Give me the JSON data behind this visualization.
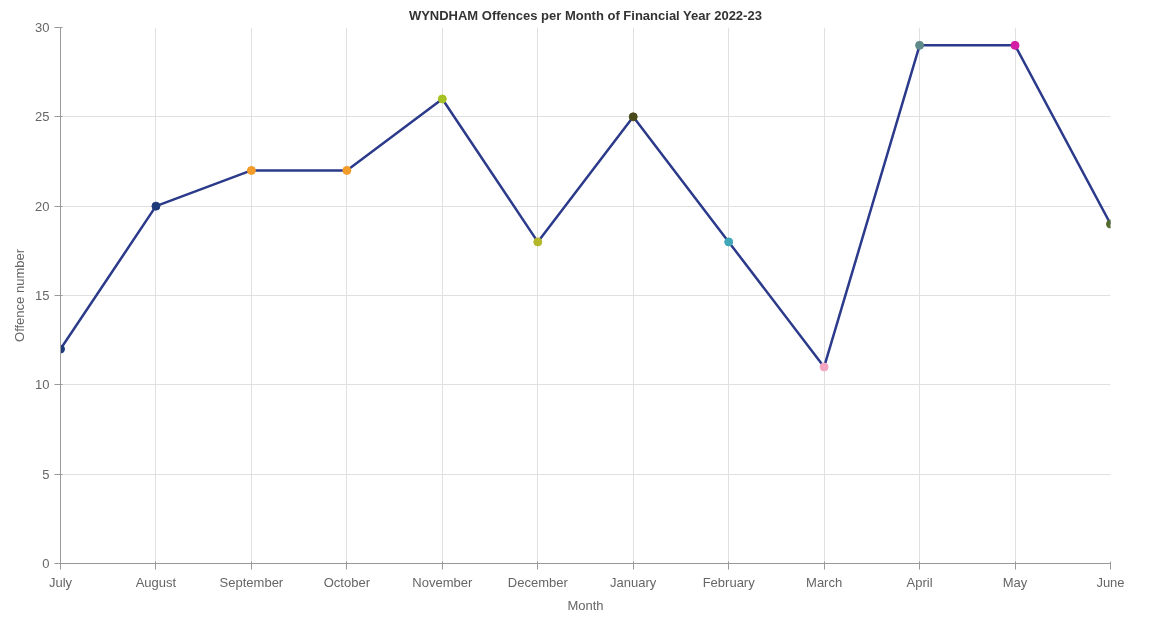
{
  "chart_data": {
    "type": "line",
    "title": "WYNDHAM Offences per Month of Financial Year 2022-23",
    "xlabel": "Month",
    "ylabel": "Offence number",
    "categories": [
      "July",
      "August",
      "September",
      "October",
      "November",
      "December",
      "January",
      "February",
      "March",
      "April",
      "May",
      "June"
    ],
    "series": [
      {
        "color": "#2b3a8a",
        "colors": [
          "#1f3a7a",
          "#1f3a7a",
          "#f39c2a",
          "#f39c2a",
          "#a6c223",
          "#b5b82a",
          "#4a4a1a",
          "#3fa7b8",
          "#f4a6c0",
          "#5f8a8a",
          "#d21fa4",
          "#556b2f"
        ],
        "values": [
          12,
          20,
          22,
          22,
          26,
          18,
          25,
          18,
          11,
          29,
          29,
          19
        ]
      }
    ],
    "ylim": [
      0,
      30
    ],
    "yticks": [
      0,
      5,
      10,
      15,
      20,
      25,
      30
    ],
    "grid": true,
    "marker": "circle",
    "line_style": "solid"
  }
}
